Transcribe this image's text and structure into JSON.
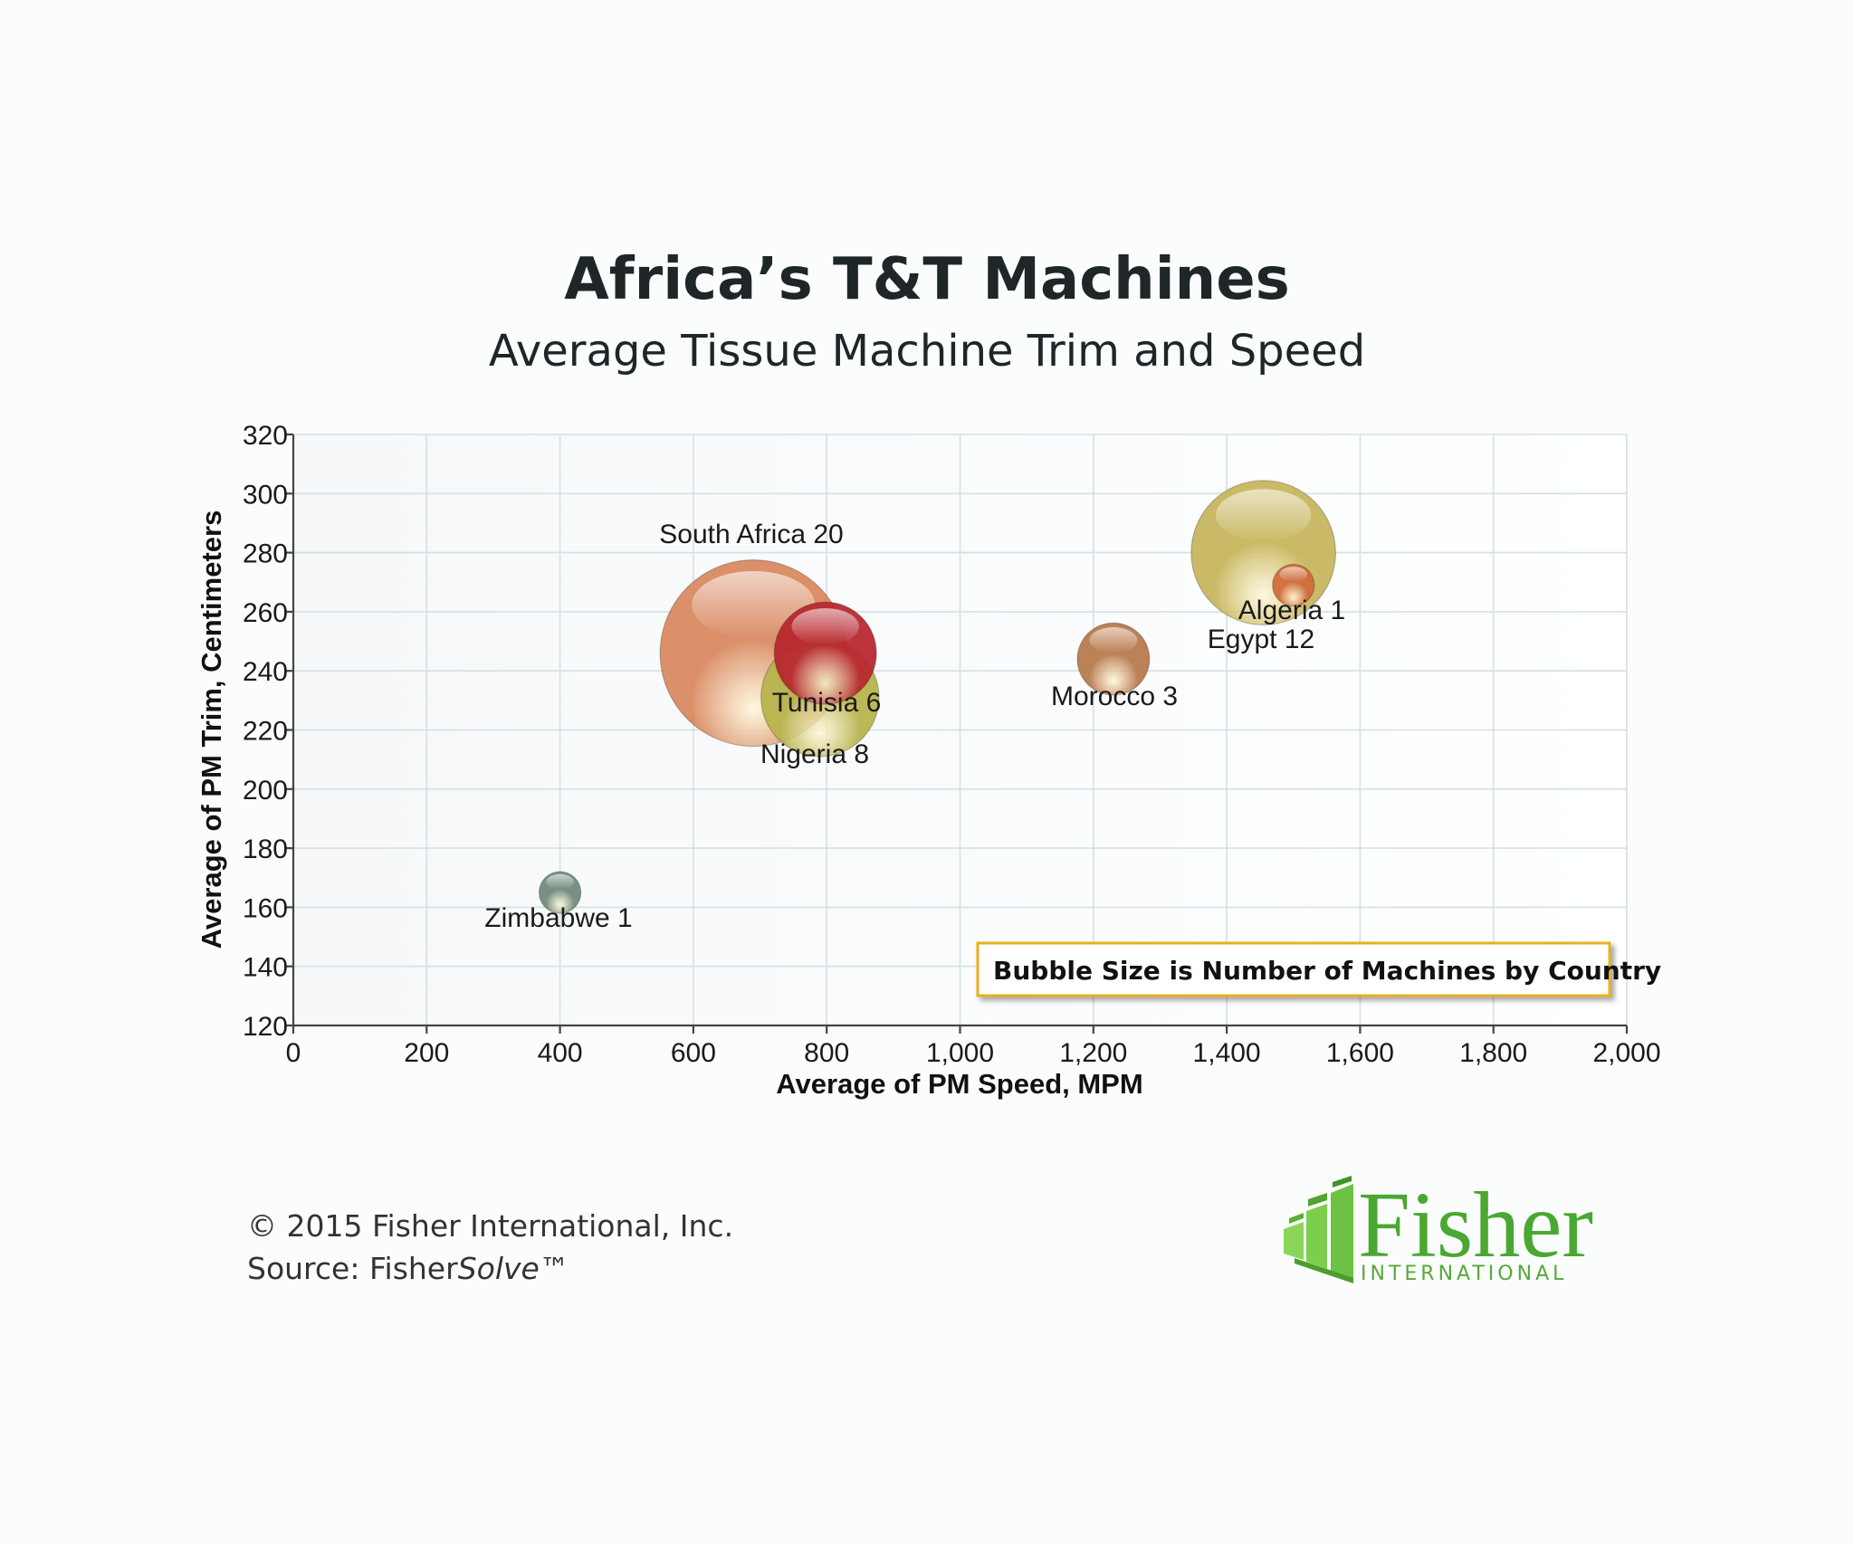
{
  "chart_data": {
    "type": "bubble",
    "title": "Africa’s T&T Machines",
    "subtitle": "Average Tissue Machine Trim and Speed",
    "xlabel": "Average of PM Speed, MPM",
    "ylabel": "Average of PM Trim, Centimeters",
    "xlim": [
      0,
      2000
    ],
    "ylim": [
      120,
      320
    ],
    "x_ticks": [
      0,
      200,
      400,
      600,
      800,
      1000,
      1200,
      1400,
      1600,
      1800,
      2000
    ],
    "x_tick_labels": [
      "0",
      "200",
      "400",
      "600",
      "800",
      "1,000",
      "1,200",
      "1,400",
      "1,600",
      "1,800",
      "2,000"
    ],
    "y_ticks": [
      120,
      140,
      160,
      180,
      200,
      220,
      240,
      260,
      280,
      300,
      320
    ],
    "y_tick_labels": [
      "120",
      "140",
      "160",
      "180",
      "200",
      "220",
      "240",
      "260",
      "280",
      "300",
      "320"
    ],
    "grid": true,
    "points": [
      {
        "label": "South Africa 20",
        "x": 690,
        "y": 246,
        "size": 20,
        "color": "#d9885e"
      },
      {
        "label": "Nigeria 8",
        "x": 790,
        "y": 231,
        "size": 8,
        "color": "#b7b34c"
      },
      {
        "label": "Tunisia 6",
        "x": 798,
        "y": 246,
        "size": 6,
        "color": "#b8262e"
      },
      {
        "label": "Zimbabwe 1",
        "x": 400,
        "y": 165,
        "size": 1,
        "color": "#6f8a7a"
      },
      {
        "label": "Morocco 3",
        "x": 1230,
        "y": 244,
        "size": 3,
        "color": "#b8784a"
      },
      {
        "label": "Egypt 12",
        "x": 1455,
        "y": 280,
        "size": 12,
        "color": "#c7b65c"
      },
      {
        "label": "Algeria 1",
        "x": 1500,
        "y": 269,
        "size": 1,
        "color": "#d06a3a"
      }
    ],
    "annotation": "Bubble Size is Number of Machines by Country"
  },
  "footer": {
    "copyright": "© 2015 Fisher International, Inc.",
    "source_prefix": "Source: Fisher",
    "source_italic": "Solve",
    "source_suffix": "™"
  },
  "logo": {
    "word": "Fisher",
    "sub": "INTERNATIONAL",
    "color": "#4aa832"
  }
}
